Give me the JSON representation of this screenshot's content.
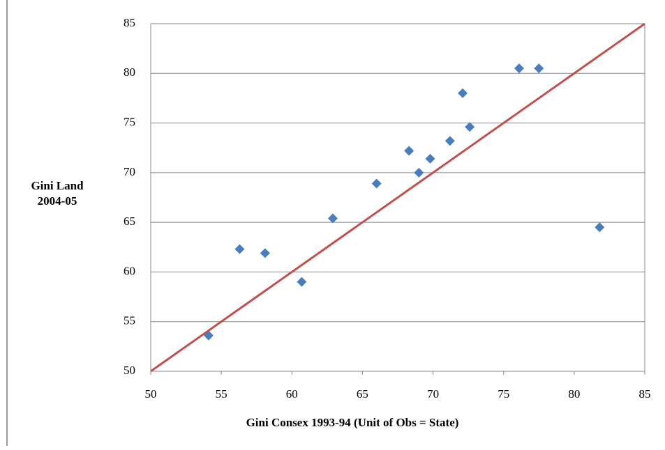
{
  "chart_data": {
    "type": "scatter",
    "xlabel": "Gini Consex  1993-94 (Unit of Obs = State)",
    "ylabel": [
      "Gini Land",
      "2004-05"
    ],
    "xlim": [
      50,
      85
    ],
    "ylim": [
      50,
      85
    ],
    "xticks": [
      50,
      55,
      60,
      65,
      70,
      75,
      80,
      85
    ],
    "yticks": [
      50,
      55,
      60,
      65,
      70,
      75,
      80,
      85
    ],
    "grid": true,
    "series": [
      {
        "color": "#4a7ebb",
        "x": [
          54.1,
          56.3,
          58.1,
          60.7,
          62.9,
          66.0,
          68.3,
          69.0,
          69.8,
          71.2,
          72.1,
          72.6,
          76.1,
          77.5,
          81.8
        ],
        "values": [
          53.6,
          62.3,
          61.9,
          59.0,
          65.4,
          68.9,
          72.2,
          70.0,
          71.4,
          73.2,
          78.0,
          74.6,
          80.5,
          80.5,
          64.5
        ]
      },
      {
        "type": "line",
        "color": "#c0504d",
        "x": [
          50,
          85
        ],
        "values": [
          50,
          85
        ]
      }
    ]
  }
}
